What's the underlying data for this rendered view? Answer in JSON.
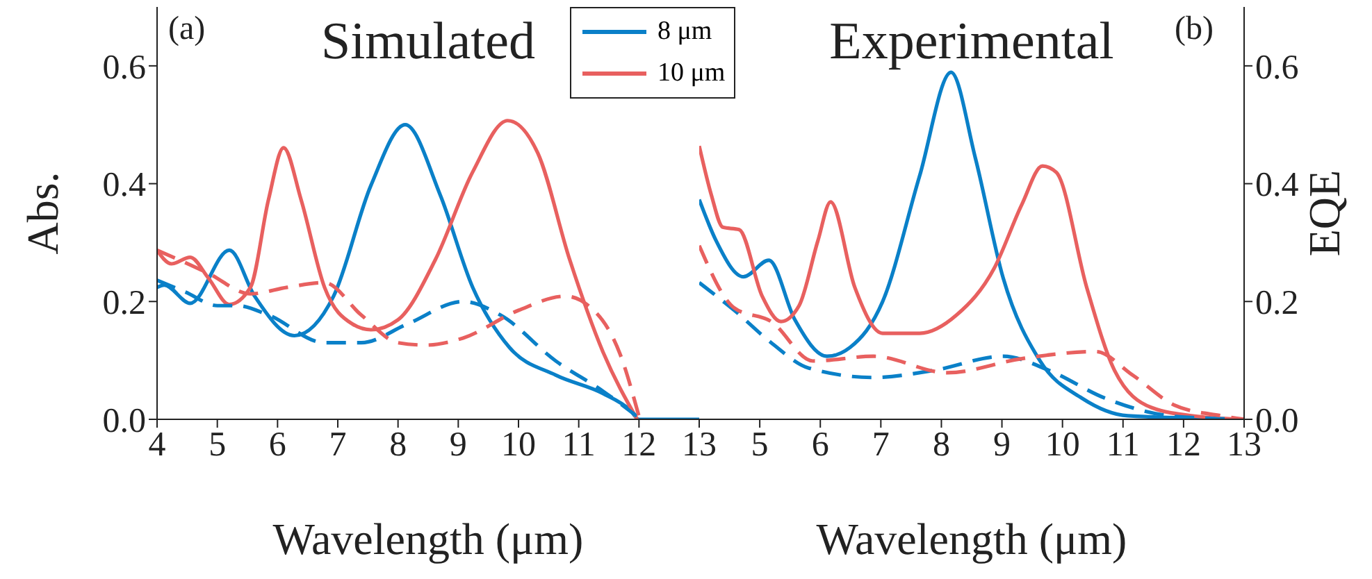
{
  "chart_data": [
    {
      "type": "line",
      "title": "Simulated",
      "xlabel": "Wavelength (μm)",
      "ylabel": "Abs.",
      "annotations": [
        "(a)"
      ],
      "xlim": [
        4,
        13
      ],
      "xticks": [
        4,
        5,
        6,
        7,
        8,
        9,
        10,
        11,
        12,
        13
      ],
      "ylim": [
        0,
        0.7
      ],
      "yticks": [
        {
          "value": 0,
          "label": "0.0"
        },
        {
          "value": 0.2,
          "label": "0.2"
        },
        {
          "value": 0.4,
          "label": "0.4"
        },
        {
          "value": 0.6,
          "label": "0.6"
        }
      ],
      "legend": "top right",
      "grid": false,
      "series": [
        {
          "name": "8 μm",
          "color": "#0a80c8",
          "line_style": "solid",
          "x": [
            4,
            4.12,
            4.55,
            5.2,
            5.62,
            6.28,
            6.93,
            7.55,
            8.12,
            8.7,
            9.24,
            9.85,
            10.62,
            11.4,
            11.85,
            12.0,
            13
          ],
          "values": [
            0.224,
            0.228,
            0.197,
            0.287,
            0.209,
            0.142,
            0.209,
            0.397,
            0.5,
            0.381,
            0.224,
            0.122,
            0.075,
            0.044,
            0.016,
            0,
            0
          ]
        },
        {
          "name": "10 μm",
          "color": "#e8605f",
          "line_style": "solid",
          "x": [
            4,
            4.24,
            4.55,
            4.85,
            5.2,
            5.55,
            5.85,
            6.1,
            6.39,
            6.78,
            7.24,
            7.55,
            8.0,
            8.62,
            9.24,
            9.82,
            10.32,
            10.85,
            11.4,
            11.97
          ],
          "values": [
            0.287,
            0.264,
            0.275,
            0.24,
            0.195,
            0.224,
            0.373,
            0.461,
            0.373,
            0.224,
            0.162,
            0.152,
            0.169,
            0.271,
            0.42,
            0.507,
            0.452,
            0.271,
            0.115,
            0
          ]
        },
        {
          "color": "#0a80c8",
          "line_style": "dashed",
          "x": [
            4,
            4.47,
            5.0,
            5.33,
            5.85,
            6.78,
            7.39,
            8.16,
            9.08,
            9.7,
            10.62,
            11.4,
            11.97
          ],
          "values": [
            0.236,
            0.216,
            0.193,
            0.193,
            0.177,
            0.13,
            0.13,
            0.162,
            0.2,
            0.177,
            0.099,
            0.048,
            0.005
          ]
        },
        {
          "color": "#e8605f",
          "line_style": "dashed",
          "x": [
            4,
            4.85,
            5.55,
            6.16,
            6.78,
            7.39,
            8.0,
            8.47,
            9.08,
            10.0,
            10.78,
            11.16,
            11.7,
            12.0
          ],
          "values": [
            0.287,
            0.248,
            0.213,
            0.224,
            0.232,
            0.177,
            0.13,
            0.126,
            0.138,
            0.185,
            0.209,
            0.193,
            0.107,
            0.005
          ]
        }
      ]
    },
    {
      "type": "line",
      "title": "Experimental",
      "xlabel": "Wavelength (μm)",
      "ylabel": "EQE",
      "annotations": [
        "(b)"
      ],
      "xlim": [
        4,
        13
      ],
      "xticks": [
        5,
        6,
        7,
        8,
        9,
        10,
        11,
        12,
        13
      ],
      "ylim": [
        0,
        0.7
      ],
      "yticks": [
        {
          "value": 0,
          "label": "0.0"
        },
        {
          "value": 0.2,
          "label": "0.2"
        },
        {
          "value": 0.4,
          "label": "0.4"
        },
        {
          "value": 0.6,
          "label": "0.6"
        }
      ],
      "grid": false,
      "series": [
        {
          "color": "#0a80c8",
          "line_style": "solid",
          "x": [
            4,
            4.28,
            4.73,
            5.15,
            5.58,
            6.11,
            6.49,
            7.03,
            7.64,
            8.16,
            8.56,
            9.02,
            9.63,
            10.32,
            11.08,
            13
          ],
          "values": [
            0.373,
            0.303,
            0.242,
            0.27,
            0.169,
            0.107,
            0.122,
            0.2,
            0.413,
            0.589,
            0.444,
            0.24,
            0.099,
            0.036,
            0.006,
            0
          ]
        },
        {
          "color": "#e8605f",
          "line_style": "solid",
          "x": [
            4,
            4.2,
            4.39,
            4.66,
            5.04,
            5.35,
            5.65,
            5.96,
            6.17,
            6.57,
            7.03,
            7.64,
            8.25,
            8.87,
            9.33,
            9.67,
            9.9,
            10.4,
            10.86,
            11.47,
            12.23,
            13
          ],
          "values": [
            0.464,
            0.381,
            0.326,
            0.322,
            0.209,
            0.166,
            0.193,
            0.303,
            0.369,
            0.224,
            0.146,
            0.146,
            0.177,
            0.256,
            0.365,
            0.43,
            0.419,
            0.224,
            0.083,
            0.02,
            0.005,
            0
          ]
        },
        {
          "color": "#0a80c8",
          "line_style": "dashed",
          "x": [
            4,
            4.58,
            5.19,
            5.81,
            6.88,
            7.87,
            9.02,
            9.78,
            10.7,
            11.85,
            13
          ],
          "values": [
            0.232,
            0.185,
            0.13,
            0.087,
            0.071,
            0.083,
            0.107,
            0.083,
            0.036,
            0.005,
            0
          ]
        },
        {
          "color": "#e8605f",
          "line_style": "dashed",
          "x": [
            4,
            4.58,
            5.19,
            5.88,
            6.88,
            8.1,
            9.33,
            10.55,
            11.16,
            11.85,
            12.62,
            13
          ],
          "values": [
            0.295,
            0.189,
            0.166,
            0.099,
            0.107,
            0.079,
            0.103,
            0.115,
            0.075,
            0.024,
            0.006,
            0
          ]
        }
      ]
    }
  ]
}
